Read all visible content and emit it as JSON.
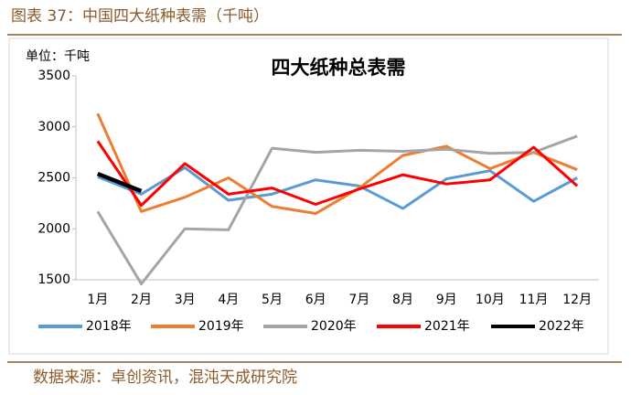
{
  "page_title": "图表 37：中国四大纸种表需（千吨）",
  "source": "数据来源：卓创资讯，混沌天成研究院",
  "chart_data": {
    "type": "line",
    "title": "四大纸种总表需",
    "unit_label": "单位：千吨",
    "categories": [
      "1月",
      "2月",
      "3月",
      "4月",
      "5月",
      "6月",
      "7月",
      "8月",
      "9月",
      "10月",
      "11月",
      "12月"
    ],
    "series": [
      {
        "name": "2018年",
        "color": "#5b9bd5",
        "values": [
          2510,
          2340,
          2600,
          2280,
          2340,
          2480,
          2420,
          2200,
          2490,
          2570,
          2270,
          2500
        ]
      },
      {
        "name": "2019年",
        "color": "#ed7d31",
        "values": [
          3130,
          2170,
          2310,
          2500,
          2220,
          2150,
          2400,
          2720,
          2810,
          2590,
          2750,
          2580
        ]
      },
      {
        "name": "2020年",
        "color": "#a5a5a5",
        "values": [
          2170,
          1460,
          2000,
          1990,
          2790,
          2750,
          2770,
          2760,
          2780,
          2740,
          2750,
          2910
        ]
      },
      {
        "name": "2021年",
        "color": "#ff0000",
        "values": [
          2860,
          2230,
          2640,
          2340,
          2400,
          2240,
          2390,
          2530,
          2440,
          2480,
          2800,
          2420
        ]
      },
      {
        "name": "2022年",
        "color": "#000000",
        "values": [
          2540,
          2370,
          null,
          null,
          null,
          null,
          null,
          null,
          null,
          null,
          null,
          null
        ]
      }
    ],
    "ylim": [
      1500,
      3500
    ],
    "yticks": [
      1500,
      2000,
      2500,
      3000,
      3500
    ],
    "grid": false
  }
}
